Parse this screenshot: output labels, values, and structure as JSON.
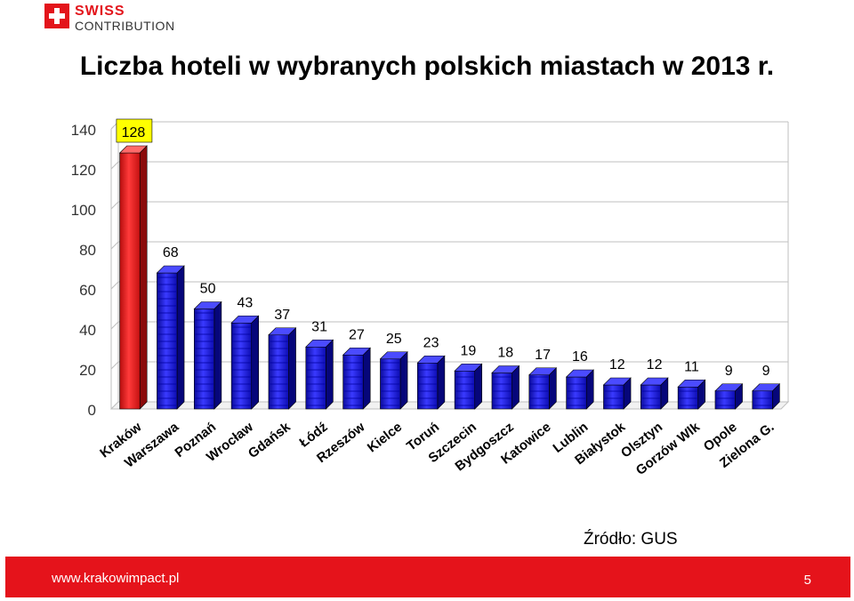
{
  "logo": {
    "line1": "SWISS",
    "line2": "CONTRIBUTION",
    "flag_color": "#e3141b"
  },
  "title": "Liczba hoteli w wybranych polskich miastach w 2013 r.",
  "source": "Źródło: GUS",
  "footer": {
    "url": "www.krakowimpact.pl",
    "page": "5",
    "color": "#e5131b"
  },
  "chart_data": {
    "type": "bar",
    "title": "Liczba hoteli w wybranych polskich miastach w 2013 r.",
    "categories": [
      "Kraków",
      "Warszawa",
      "Poznań",
      "Wrocław",
      "Gdańsk",
      "Łódź",
      "Rzeszów",
      "Kielce",
      "Toruń",
      "Szczecin",
      "Bydgoszcz",
      "Katowice",
      "Lublin",
      "Białystok",
      "Olsztyn",
      "Gorzów Wlk",
      "Opole",
      "Zielona G."
    ],
    "values": [
      128,
      68,
      50,
      43,
      37,
      31,
      27,
      25,
      23,
      19,
      18,
      17,
      16,
      12,
      12,
      11,
      9,
      9
    ],
    "ylim": [
      0,
      140
    ],
    "yticks": [
      0,
      20,
      40,
      60,
      80,
      100,
      120,
      140
    ],
    "highlight": {
      "index": 0,
      "color": "#e31b1b",
      "label_background": "#ffff00"
    },
    "bar_color": "#1515d8",
    "grid": true,
    "three_d": true
  }
}
